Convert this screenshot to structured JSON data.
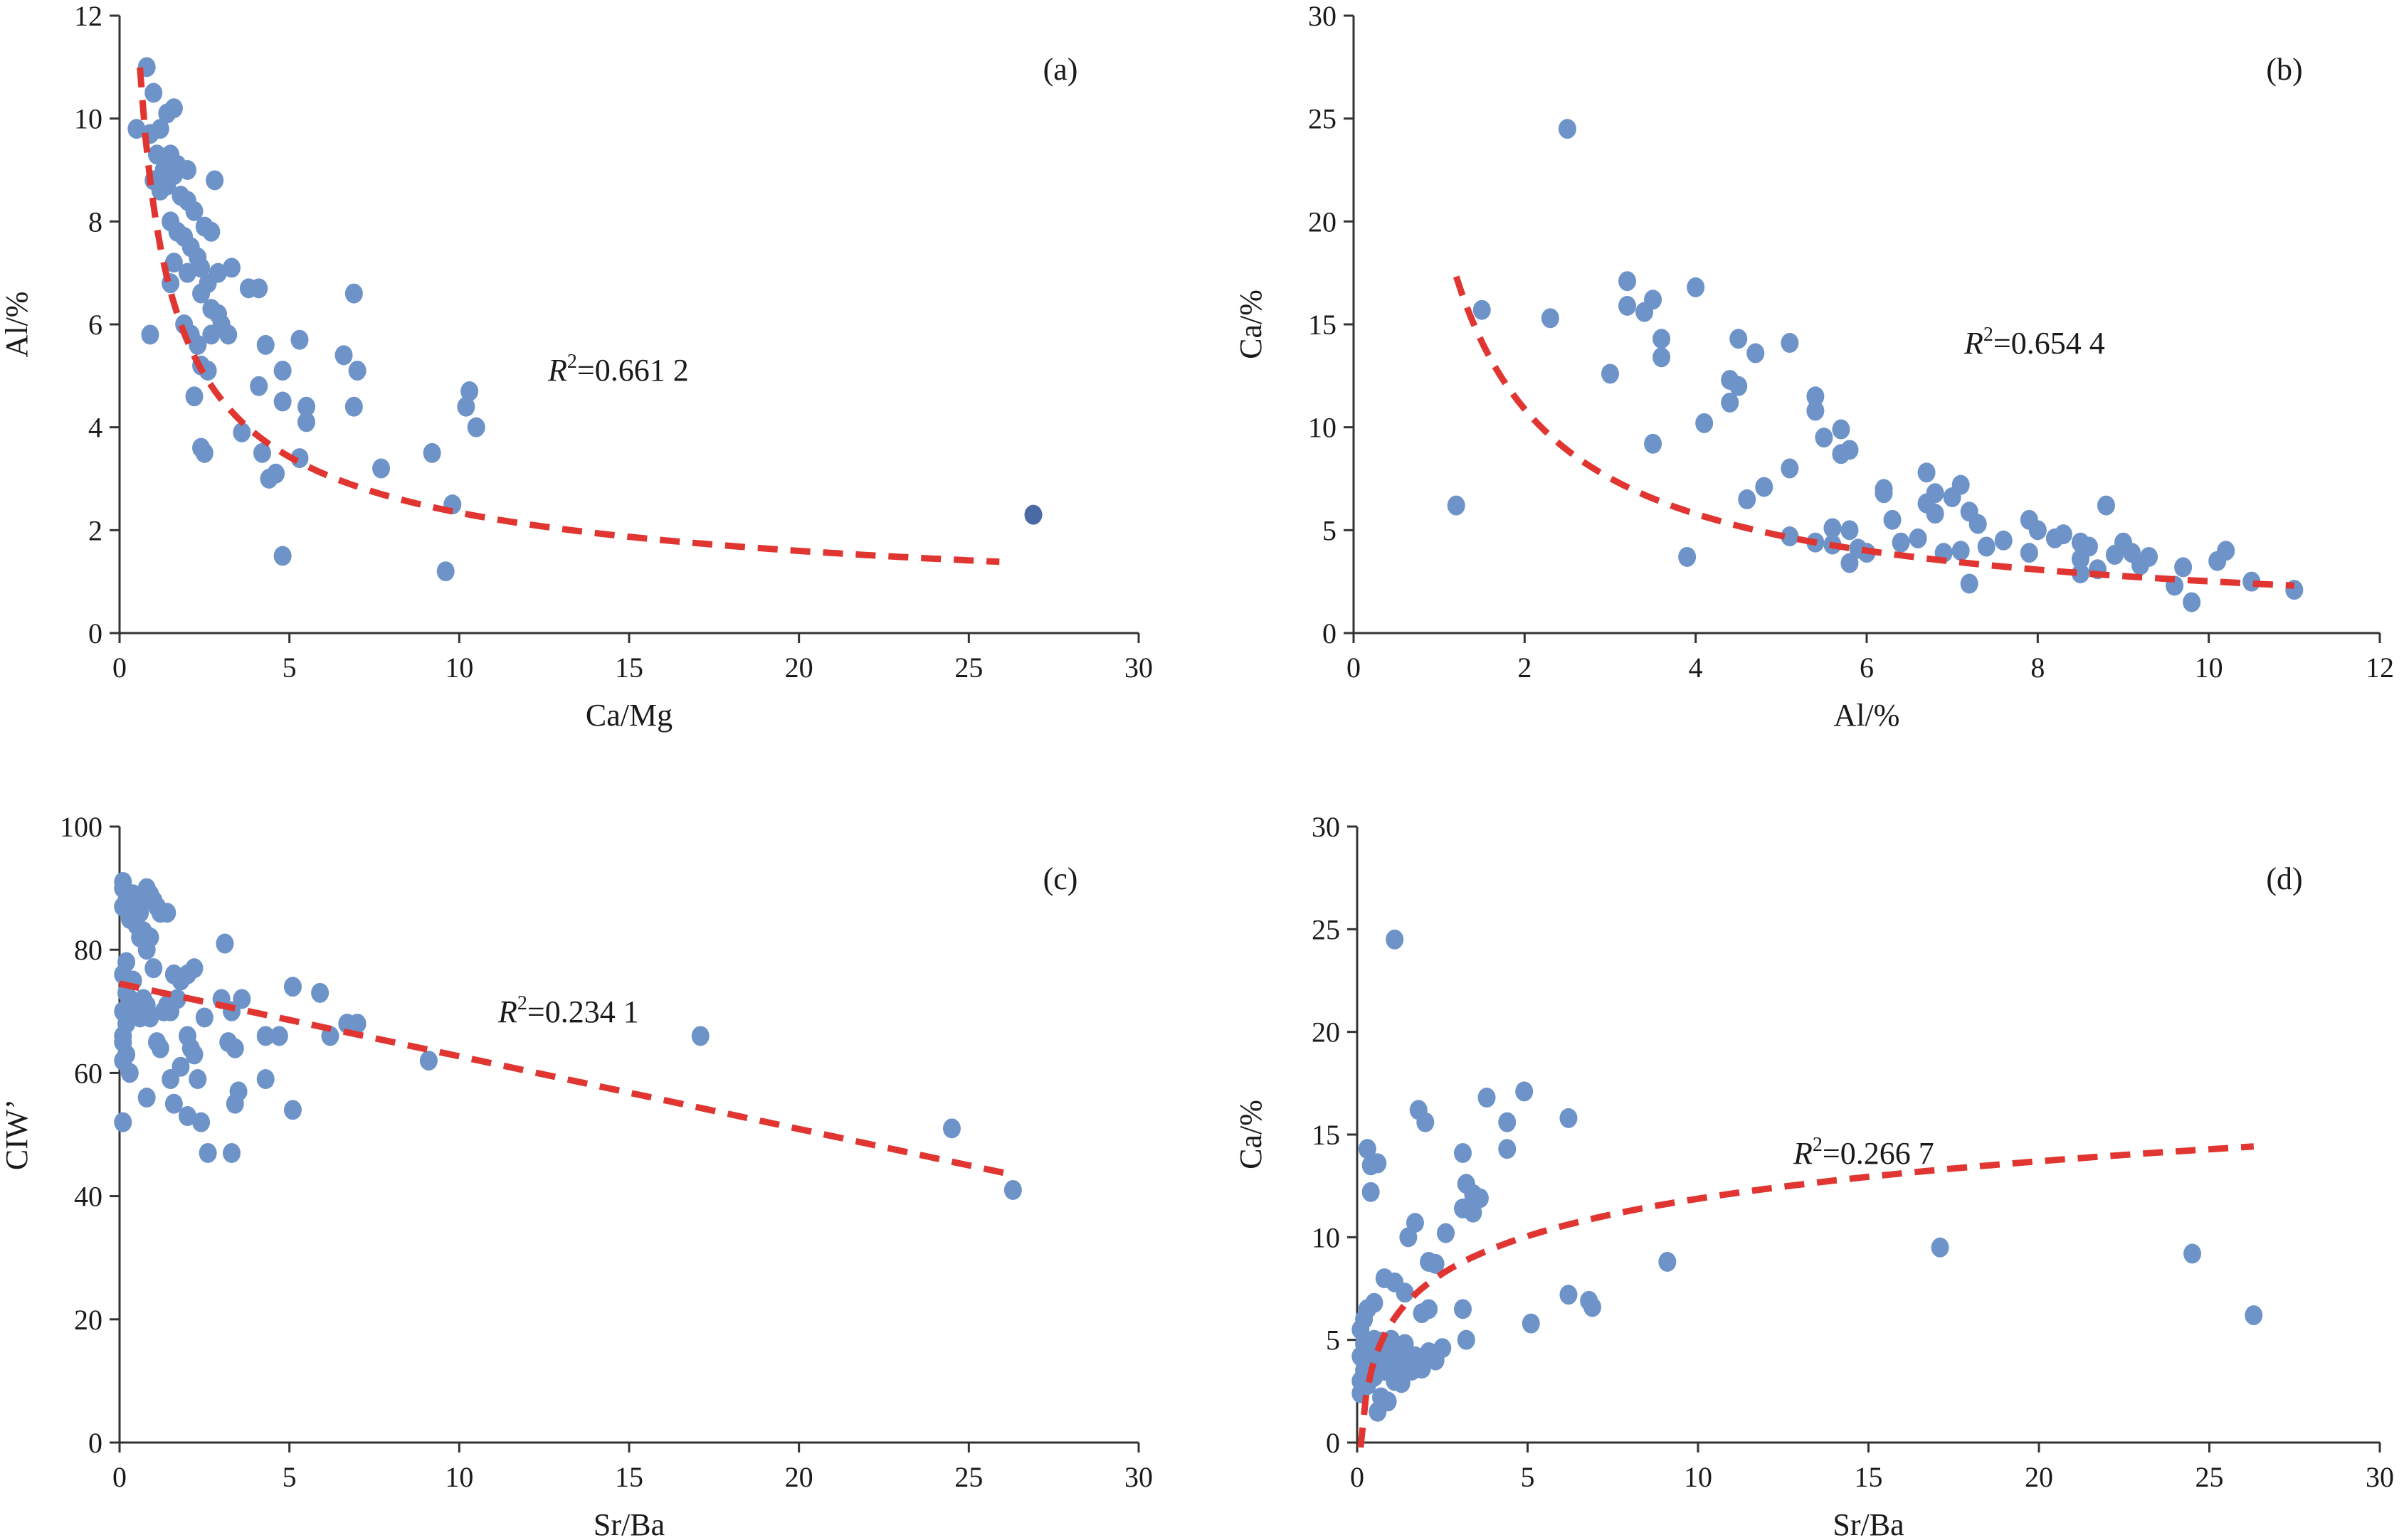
{
  "colors": {
    "point": "#6d93c8",
    "outlier_point": "#4a69a5",
    "trend": "#e03530",
    "axis": "#333333"
  },
  "chart_data": [
    {
      "id": "a",
      "type": "scatter",
      "panel_label": "(a)",
      "xlabel": "Ca/Mg",
      "ylabel": "Al/%",
      "xlim": [
        0,
        30
      ],
      "ylim": [
        0,
        12
      ],
      "xticks": [
        0,
        5,
        10,
        15,
        20,
        25,
        30
      ],
      "yticks": [
        0,
        2,
        4,
        6,
        8,
        10,
        12
      ],
      "r2_prefix": "R",
      "r2_sup": "2",
      "r2_value": "=0.661 2",
      "trend": {
        "model": "power",
        "a": 8.3,
        "b": -0.55,
        "x_from": 0.6,
        "x_to": 25.9,
        "style": "dashed"
      },
      "points": [
        [
          0.5,
          9.8
        ],
        [
          0.8,
          11.0
        ],
        [
          1.0,
          10.5
        ],
        [
          0.9,
          9.7
        ],
        [
          1.2,
          9.8
        ],
        [
          1.4,
          10.1
        ],
        [
          1.6,
          10.2
        ],
        [
          1.1,
          9.3
        ],
        [
          1.3,
          9.0
        ],
        [
          1.5,
          9.3
        ],
        [
          1.7,
          9.1
        ],
        [
          2.0,
          9.0
        ],
        [
          1.0,
          8.8
        ],
        [
          1.2,
          8.6
        ],
        [
          1.4,
          8.7
        ],
        [
          1.6,
          8.9
        ],
        [
          1.8,
          8.5
        ],
        [
          2.0,
          8.4
        ],
        [
          2.2,
          8.2
        ],
        [
          2.8,
          8.8
        ],
        [
          1.5,
          8.0
        ],
        [
          1.7,
          7.8
        ],
        [
          1.9,
          7.7
        ],
        [
          2.1,
          7.5
        ],
        [
          2.3,
          7.3
        ],
        [
          2.5,
          7.9
        ],
        [
          2.7,
          7.8
        ],
        [
          1.6,
          7.2
        ],
        [
          2.0,
          7.0
        ],
        [
          2.4,
          7.1
        ],
        [
          2.6,
          6.8
        ],
        [
          2.9,
          7.0
        ],
        [
          3.3,
          7.1
        ],
        [
          1.5,
          6.8
        ],
        [
          2.4,
          6.6
        ],
        [
          2.7,
          6.3
        ],
        [
          2.9,
          6.2
        ],
        [
          3.0,
          6.0
        ],
        [
          3.8,
          6.7
        ],
        [
          4.1,
          6.7
        ],
        [
          6.9,
          6.6
        ],
        [
          6.6,
          5.4
        ],
        [
          1.9,
          6.0
        ],
        [
          2.1,
          5.8
        ],
        [
          2.3,
          5.6
        ],
        [
          2.7,
          5.8
        ],
        [
          3.2,
          5.8
        ],
        [
          0.9,
          5.8
        ],
        [
          4.3,
          5.6
        ],
        [
          5.3,
          5.7
        ],
        [
          2.4,
          5.2
        ],
        [
          2.6,
          5.1
        ],
        [
          2.2,
          4.6
        ],
        [
          4.1,
          4.8
        ],
        [
          4.8,
          5.1
        ],
        [
          5.5,
          4.4
        ],
        [
          5.5,
          4.1
        ],
        [
          4.8,
          4.5
        ],
        [
          6.9,
          4.4
        ],
        [
          7.0,
          5.1
        ],
        [
          10.3,
          4.7
        ],
        [
          10.2,
          4.4
        ],
        [
          10.5,
          4.0
        ],
        [
          3.6,
          3.9
        ],
        [
          2.4,
          3.6
        ],
        [
          2.5,
          3.5
        ],
        [
          4.2,
          3.5
        ],
        [
          4.4,
          3.0
        ],
        [
          4.6,
          3.1
        ],
        [
          5.3,
          3.4
        ],
        [
          7.7,
          3.2
        ],
        [
          9.2,
          3.5
        ],
        [
          9.8,
          2.5
        ],
        [
          4.8,
          1.5
        ],
        [
          9.6,
          1.2
        ]
      ],
      "outliers": [
        [
          26.9,
          2.3
        ]
      ]
    },
    {
      "id": "b",
      "type": "scatter",
      "panel_label": "(b)",
      "xlabel": "Al/%",
      "ylabel": "Ca/%",
      "xlim": [
        0,
        12
      ],
      "ylim": [
        0,
        30
      ],
      "xticks": [
        0,
        2,
        4,
        6,
        8,
        10,
        12
      ],
      "yticks": [
        0,
        5,
        10,
        15,
        20,
        25,
        30
      ],
      "r2_prefix": "R",
      "r2_sup": "2",
      "r2_value": "=0.654 4",
      "trend": {
        "model": "power",
        "a": 20.45,
        "b": -0.91,
        "x_from": 1.2,
        "x_to": 11.0,
        "style": "dashed"
      },
      "points": [
        [
          1.2,
          6.2
        ],
        [
          1.5,
          15.7
        ],
        [
          2.3,
          15.3
        ],
        [
          2.5,
          24.5
        ],
        [
          3.0,
          12.6
        ],
        [
          3.2,
          17.1
        ],
        [
          3.2,
          15.9
        ],
        [
          3.4,
          15.6
        ],
        [
          3.5,
          16.2
        ],
        [
          3.6,
          14.3
        ],
        [
          3.6,
          13.4
        ],
        [
          3.5,
          9.2
        ],
        [
          3.9,
          3.7
        ],
        [
          4.0,
          16.8
        ],
        [
          4.1,
          10.2
        ],
        [
          4.4,
          12.3
        ],
        [
          4.5,
          12.0
        ],
        [
          4.4,
          11.2
        ],
        [
          4.5,
          14.3
        ],
        [
          4.7,
          13.6
        ],
        [
          4.6,
          6.5
        ],
        [
          4.8,
          7.1
        ],
        [
          5.1,
          14.1
        ],
        [
          5.1,
          8.0
        ],
        [
          5.1,
          4.7
        ],
        [
          5.4,
          4.4
        ],
        [
          5.4,
          11.5
        ],
        [
          5.4,
          10.8
        ],
        [
          5.5,
          9.5
        ],
        [
          5.6,
          5.1
        ],
        [
          5.7,
          9.9
        ],
        [
          5.7,
          8.7
        ],
        [
          5.8,
          8.9
        ],
        [
          5.6,
          4.3
        ],
        [
          5.8,
          5.0
        ],
        [
          5.9,
          4.1
        ],
        [
          5.8,
          3.4
        ],
        [
          6.0,
          3.9
        ],
        [
          6.2,
          7.0
        ],
        [
          6.2,
          6.8
        ],
        [
          6.3,
          5.5
        ],
        [
          6.4,
          4.4
        ],
        [
          6.6,
          4.6
        ],
        [
          6.7,
          7.8
        ],
        [
          6.7,
          6.3
        ],
        [
          6.8,
          6.8
        ],
        [
          6.8,
          5.8
        ],
        [
          6.9,
          3.9
        ],
        [
          7.1,
          4.0
        ],
        [
          7.0,
          6.6
        ],
        [
          7.1,
          7.2
        ],
        [
          7.2,
          5.9
        ],
        [
          7.3,
          5.3
        ],
        [
          7.2,
          2.4
        ],
        [
          7.4,
          4.2
        ],
        [
          7.6,
          4.5
        ],
        [
          7.9,
          3.9
        ],
        [
          7.9,
          5.5
        ],
        [
          8.0,
          5.0
        ],
        [
          8.2,
          4.6
        ],
        [
          8.3,
          4.8
        ],
        [
          8.5,
          4.4
        ],
        [
          8.5,
          3.6
        ],
        [
          8.6,
          4.2
        ],
        [
          8.5,
          2.9
        ],
        [
          8.7,
          3.1
        ],
        [
          8.8,
          6.2
        ],
        [
          8.9,
          3.8
        ],
        [
          9.0,
          4.4
        ],
        [
          9.1,
          3.9
        ],
        [
          9.3,
          3.7
        ],
        [
          9.2,
          3.3
        ],
        [
          9.6,
          2.3
        ],
        [
          9.7,
          3.2
        ],
        [
          9.8,
          1.5
        ],
        [
          10.1,
          3.5
        ],
        [
          10.2,
          4.0
        ],
        [
          10.5,
          2.5
        ],
        [
          11.0,
          2.1
        ]
      ],
      "outliers": []
    },
    {
      "id": "c",
      "type": "scatter",
      "panel_label": "(c)",
      "xlabel": "Sr/Ba",
      "ylabel": "CIW’",
      "xlim": [
        0,
        30
      ],
      "ylim": [
        0,
        100
      ],
      "xticks": [
        0,
        5,
        10,
        15,
        20,
        25,
        30
      ],
      "yticks": [
        0,
        20,
        40,
        60,
        80,
        100
      ],
      "r2_prefix": "R",
      "r2_sup": "2",
      "r2_value": "=0.234 1",
      "trend": {
        "model": "linear",
        "m": -1.18,
        "c": 74.5,
        "x_from": 0.0,
        "x_to": 26.3,
        "style": "dashed"
      },
      "points": [
        [
          0.1,
          91
        ],
        [
          0.1,
          90
        ],
        [
          0.2,
          88
        ],
        [
          0.1,
          87
        ],
        [
          0.4,
          89
        ],
        [
          0.5,
          87
        ],
        [
          0.6,
          86
        ],
        [
          0.7,
          88
        ],
        [
          0.8,
          90
        ],
        [
          0.9,
          89
        ],
        [
          1.0,
          88
        ],
        [
          1.1,
          87
        ],
        [
          1.2,
          86
        ],
        [
          1.4,
          86
        ],
        [
          0.3,
          85
        ],
        [
          0.5,
          84
        ],
        [
          0.7,
          83
        ],
        [
          0.6,
          82
        ],
        [
          0.9,
          82
        ],
        [
          0.8,
          80
        ],
        [
          0.2,
          78
        ],
        [
          0.1,
          76
        ],
        [
          0.4,
          75
        ],
        [
          0.2,
          73
        ],
        [
          0.3,
          72
        ],
        [
          0.1,
          70
        ],
        [
          0.2,
          68
        ],
        [
          0.1,
          66
        ],
        [
          0.1,
          65
        ],
        [
          0.2,
          63
        ],
        [
          0.1,
          62
        ],
        [
          0.1,
          52
        ],
        [
          0.3,
          60
        ],
        [
          0.5,
          70
        ],
        [
          0.6,
          69
        ],
        [
          0.7,
          72
        ],
        [
          0.8,
          71
        ],
        [
          0.9,
          69
        ],
        [
          1.0,
          77
        ],
        [
          1.1,
          65
        ],
        [
          1.2,
          64
        ],
        [
          1.3,
          70
        ],
        [
          1.4,
          71
        ],
        [
          1.5,
          70
        ],
        [
          1.6,
          76
        ],
        [
          1.7,
          72
        ],
        [
          1.8,
          75
        ],
        [
          2.0,
          76
        ],
        [
          2.2,
          77
        ],
        [
          1.5,
          59
        ],
        [
          1.6,
          55
        ],
        [
          1.8,
          61
        ],
        [
          2.0,
          66
        ],
        [
          2.1,
          64
        ],
        [
          2.2,
          63
        ],
        [
          2.3,
          59
        ],
        [
          2.4,
          52
        ],
        [
          2.5,
          69
        ],
        [
          2.0,
          53
        ],
        [
          2.6,
          47
        ],
        [
          3.0,
          72
        ],
        [
          3.1,
          81
        ],
        [
          3.2,
          65
        ],
        [
          3.3,
          70
        ],
        [
          3.4,
          64
        ],
        [
          3.5,
          57
        ],
        [
          3.4,
          55
        ],
        [
          3.3,
          47
        ],
        [
          3.6,
          72
        ],
        [
          4.3,
          66
        ],
        [
          4.3,
          59
        ],
        [
          4.7,
          66
        ],
        [
          5.1,
          74
        ],
        [
          5.1,
          54
        ],
        [
          5.9,
          73
        ],
        [
          6.2,
          66
        ],
        [
          6.7,
          68
        ],
        [
          7.0,
          68
        ],
        [
          9.1,
          62
        ],
        [
          0.8,
          56
        ],
        [
          17.1,
          66
        ],
        [
          24.5,
          51
        ],
        [
          26.3,
          41
        ]
      ],
      "outliers": []
    },
    {
      "id": "d",
      "type": "scatter",
      "panel_label": "(d)",
      "xlabel": "Sr/Ba",
      "ylabel": "Ca/%",
      "xlim": [
        0,
        30
      ],
      "ylim": [
        0,
        30
      ],
      "xticks": [
        0,
        5,
        10,
        15,
        20,
        25,
        30
      ],
      "yticks": [
        0,
        5,
        10,
        15,
        20,
        25,
        30
      ],
      "r2_prefix": "R",
      "r2_sup": "2",
      "r2_value": "=0.266 7",
      "trend": {
        "model": "log",
        "a": 2.63,
        "c": 5.82,
        "x_from": 0.1,
        "x_to": 26.3,
        "style": "dashed"
      },
      "points": [
        [
          0.1,
          2.4
        ],
        [
          0.1,
          3.0
        ],
        [
          0.2,
          3.5
        ],
        [
          0.1,
          4.2
        ],
        [
          0.2,
          4.8
        ],
        [
          0.1,
          5.5
        ],
        [
          0.2,
          6.0
        ],
        [
          0.3,
          2.8
        ],
        [
          0.3,
          3.8
        ],
        [
          0.4,
          4.5
        ],
        [
          0.5,
          5.0
        ],
        [
          0.5,
          3.2
        ],
        [
          0.6,
          4.0
        ],
        [
          0.7,
          2.2
        ],
        [
          0.6,
          1.5
        ],
        [
          0.8,
          3.5
        ],
        [
          0.9,
          4.3
        ],
        [
          1.0,
          5.0
        ],
        [
          1.1,
          3.0
        ],
        [
          0.9,
          2.0
        ],
        [
          1.2,
          4.5
        ],
        [
          1.3,
          3.8
        ],
        [
          1.4,
          4.8
        ],
        [
          1.5,
          4.0
        ],
        [
          1.6,
          3.5
        ],
        [
          1.7,
          4.2
        ],
        [
          1.9,
          3.6
        ],
        [
          2.1,
          4.4
        ],
        [
          2.3,
          4.0
        ],
        [
          2.5,
          4.6
        ],
        [
          0.3,
          6.5
        ],
        [
          0.5,
          6.8
        ],
        [
          0.8,
          8.0
        ],
        [
          1.1,
          7.8
        ],
        [
          1.4,
          7.3
        ],
        [
          1.9,
          6.3
        ],
        [
          2.1,
          6.5
        ],
        [
          1.5,
          10.0
        ],
        [
          1.7,
          10.7
        ],
        [
          2.1,
          8.8
        ],
        [
          2.3,
          8.7
        ],
        [
          0.3,
          14.3
        ],
        [
          0.4,
          13.5
        ],
        [
          0.6,
          13.6
        ],
        [
          0.4,
          12.2
        ],
        [
          1.1,
          24.5
        ],
        [
          1.8,
          16.2
        ],
        [
          2.0,
          15.6
        ],
        [
          2.6,
          10.2
        ],
        [
          3.1,
          14.1
        ],
        [
          3.2,
          12.6
        ],
        [
          3.3,
          11.5
        ],
        [
          3.4,
          12.1
        ],
        [
          3.6,
          11.9
        ],
        [
          3.1,
          11.4
        ],
        [
          3.4,
          11.2
        ],
        [
          3.8,
          16.8
        ],
        [
          4.4,
          15.6
        ],
        [
          4.4,
          14.3
        ],
        [
          4.9,
          17.1
        ],
        [
          3.1,
          6.5
        ],
        [
          3.2,
          5.0
        ],
        [
          5.1,
          5.8
        ],
        [
          6.2,
          15.8
        ],
        [
          6.2,
          7.2
        ],
        [
          6.8,
          6.9
        ],
        [
          6.9,
          6.6
        ],
        [
          9.1,
          8.8
        ],
        [
          17.1,
          9.5
        ],
        [
          24.5,
          9.2
        ],
        [
          26.3,
          6.2
        ],
        [
          0.7,
          4.9
        ],
        [
          1.0,
          3.4
        ],
        [
          1.3,
          2.9
        ]
      ],
      "outliers": []
    }
  ]
}
